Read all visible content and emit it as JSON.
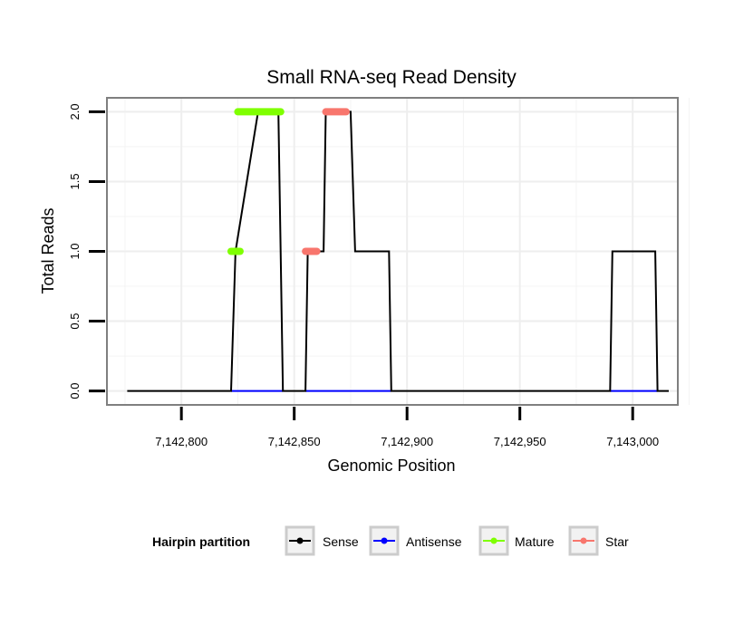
{
  "chart_data": {
    "type": "line",
    "title": "Small RNA-seq Read Density",
    "xlabel": "Genomic Position",
    "ylabel": "Total Reads",
    "xlim": [
      7142767,
      7143020
    ],
    "ylim": [
      -0.1,
      2.1
    ],
    "x_ticks": [
      7142800,
      7142850,
      7142900,
      7142950,
      7143000
    ],
    "x_tick_labels": [
      "7,142,800",
      "7,142,850",
      "7,142,900",
      "7,142,950",
      "7,143,000"
    ],
    "y_ticks": [
      0.0,
      0.5,
      1.0,
      1.5,
      2.0
    ],
    "y_tick_labels": [
      "0.0",
      "0.5",
      "1.0",
      "1.5",
      "2.0"
    ],
    "grid": true,
    "series": [
      {
        "name": "Sense",
        "color": "#000000",
        "x": [
          7142776,
          7142822,
          7142824,
          7142834,
          7142843,
          7142845,
          7142855,
          7142856,
          7142863,
          7142864,
          7142875,
          7142877,
          7142892,
          7142893,
          7142990,
          7142991,
          7143010,
          7143011,
          7143016
        ],
        "y": [
          0,
          0,
          1,
          2,
          2,
          0,
          0,
          1,
          1,
          2,
          2,
          1,
          1,
          0,
          0,
          1,
          1,
          0,
          0
        ]
      },
      {
        "name": "Antisense",
        "color": "#0000ff",
        "segments": [
          [
            7142822,
            7142845
          ],
          [
            7142855,
            7142893
          ],
          [
            7142990,
            7143011
          ]
        ],
        "y": 0
      },
      {
        "name": "Mature",
        "color": "#7fff00",
        "segments": [
          {
            "x": [
              7142822,
              7142826
            ],
            "y": 1
          },
          {
            "x": [
              7142825,
              7142844
            ],
            "y": 2
          }
        ]
      },
      {
        "name": "Star",
        "color": "#f8766d",
        "segments": [
          {
            "x": [
              7142855,
              7142860
            ],
            "y": 1
          },
          {
            "x": [
              7142864,
              7142873
            ],
            "y": 2
          }
        ]
      }
    ],
    "legend": {
      "title": "Hairpin partition",
      "position": "bottom",
      "entries": [
        {
          "label": "Sense",
          "color": "#000000"
        },
        {
          "label": "Antisense",
          "color": "#0000ff"
        },
        {
          "label": "Mature",
          "color": "#7fff00"
        },
        {
          "label": "Star",
          "color": "#f8766d"
        }
      ]
    }
  }
}
